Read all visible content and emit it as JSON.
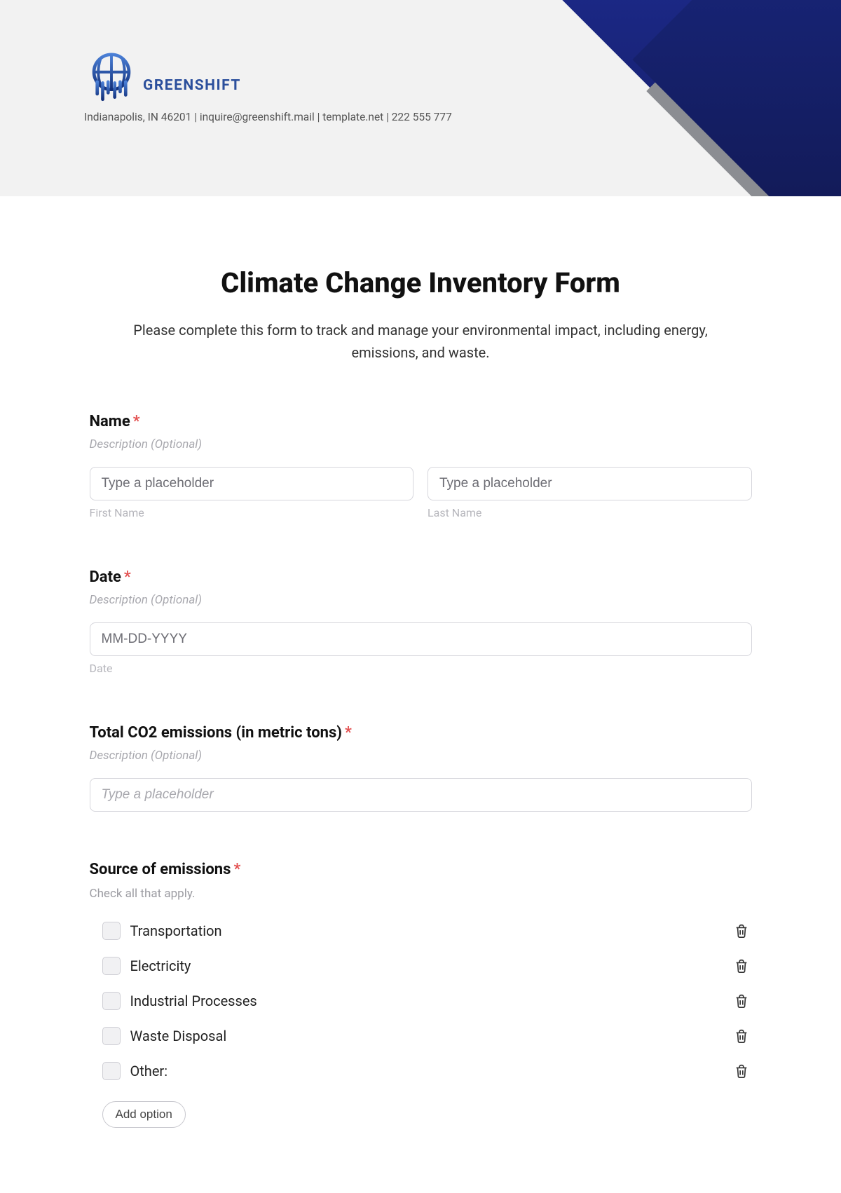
{
  "header": {
    "brand": "GREENSHIFT",
    "contact": "Indianapolis, IN 46201 | inquire@greenshift.mail | template.net | 222 555 777",
    "colors": {
      "header_bg": "#f2f2f2",
      "brand_color": "#2b4f9c",
      "shape_black": "#090909",
      "shape_blue_a": "#2234a8",
      "shape_blue_b": "#141b60",
      "shape_gray": "#8b8d92"
    }
  },
  "form": {
    "title": "Climate Change Inventory Form",
    "subtitle": "Please complete this form to track and manage your environmental impact, including energy, emissions, and waste.",
    "fields": {
      "name": {
        "label": "Name",
        "required": true,
        "desc": "Description (Optional)",
        "first_placeholder": "Type a placeholder",
        "first_sub": "First Name",
        "last_placeholder": "Type a placeholder",
        "last_sub": "Last Name"
      },
      "date": {
        "label": "Date",
        "required": true,
        "desc": "Description (Optional)",
        "placeholder": "MM-DD-YYYY",
        "sub": "Date"
      },
      "co2": {
        "label": "Total CO2 emissions (in metric tons)",
        "required": true,
        "desc": "Description (Optional)",
        "placeholder": "Type a placeholder"
      },
      "source": {
        "label": "Source of emissions",
        "required": true,
        "help": "Check all that apply.",
        "options": [
          "Transportation",
          "Electricity",
          "Industrial Processes",
          "Waste Disposal",
          "Other:"
        ],
        "add_option": "Add option"
      }
    }
  }
}
